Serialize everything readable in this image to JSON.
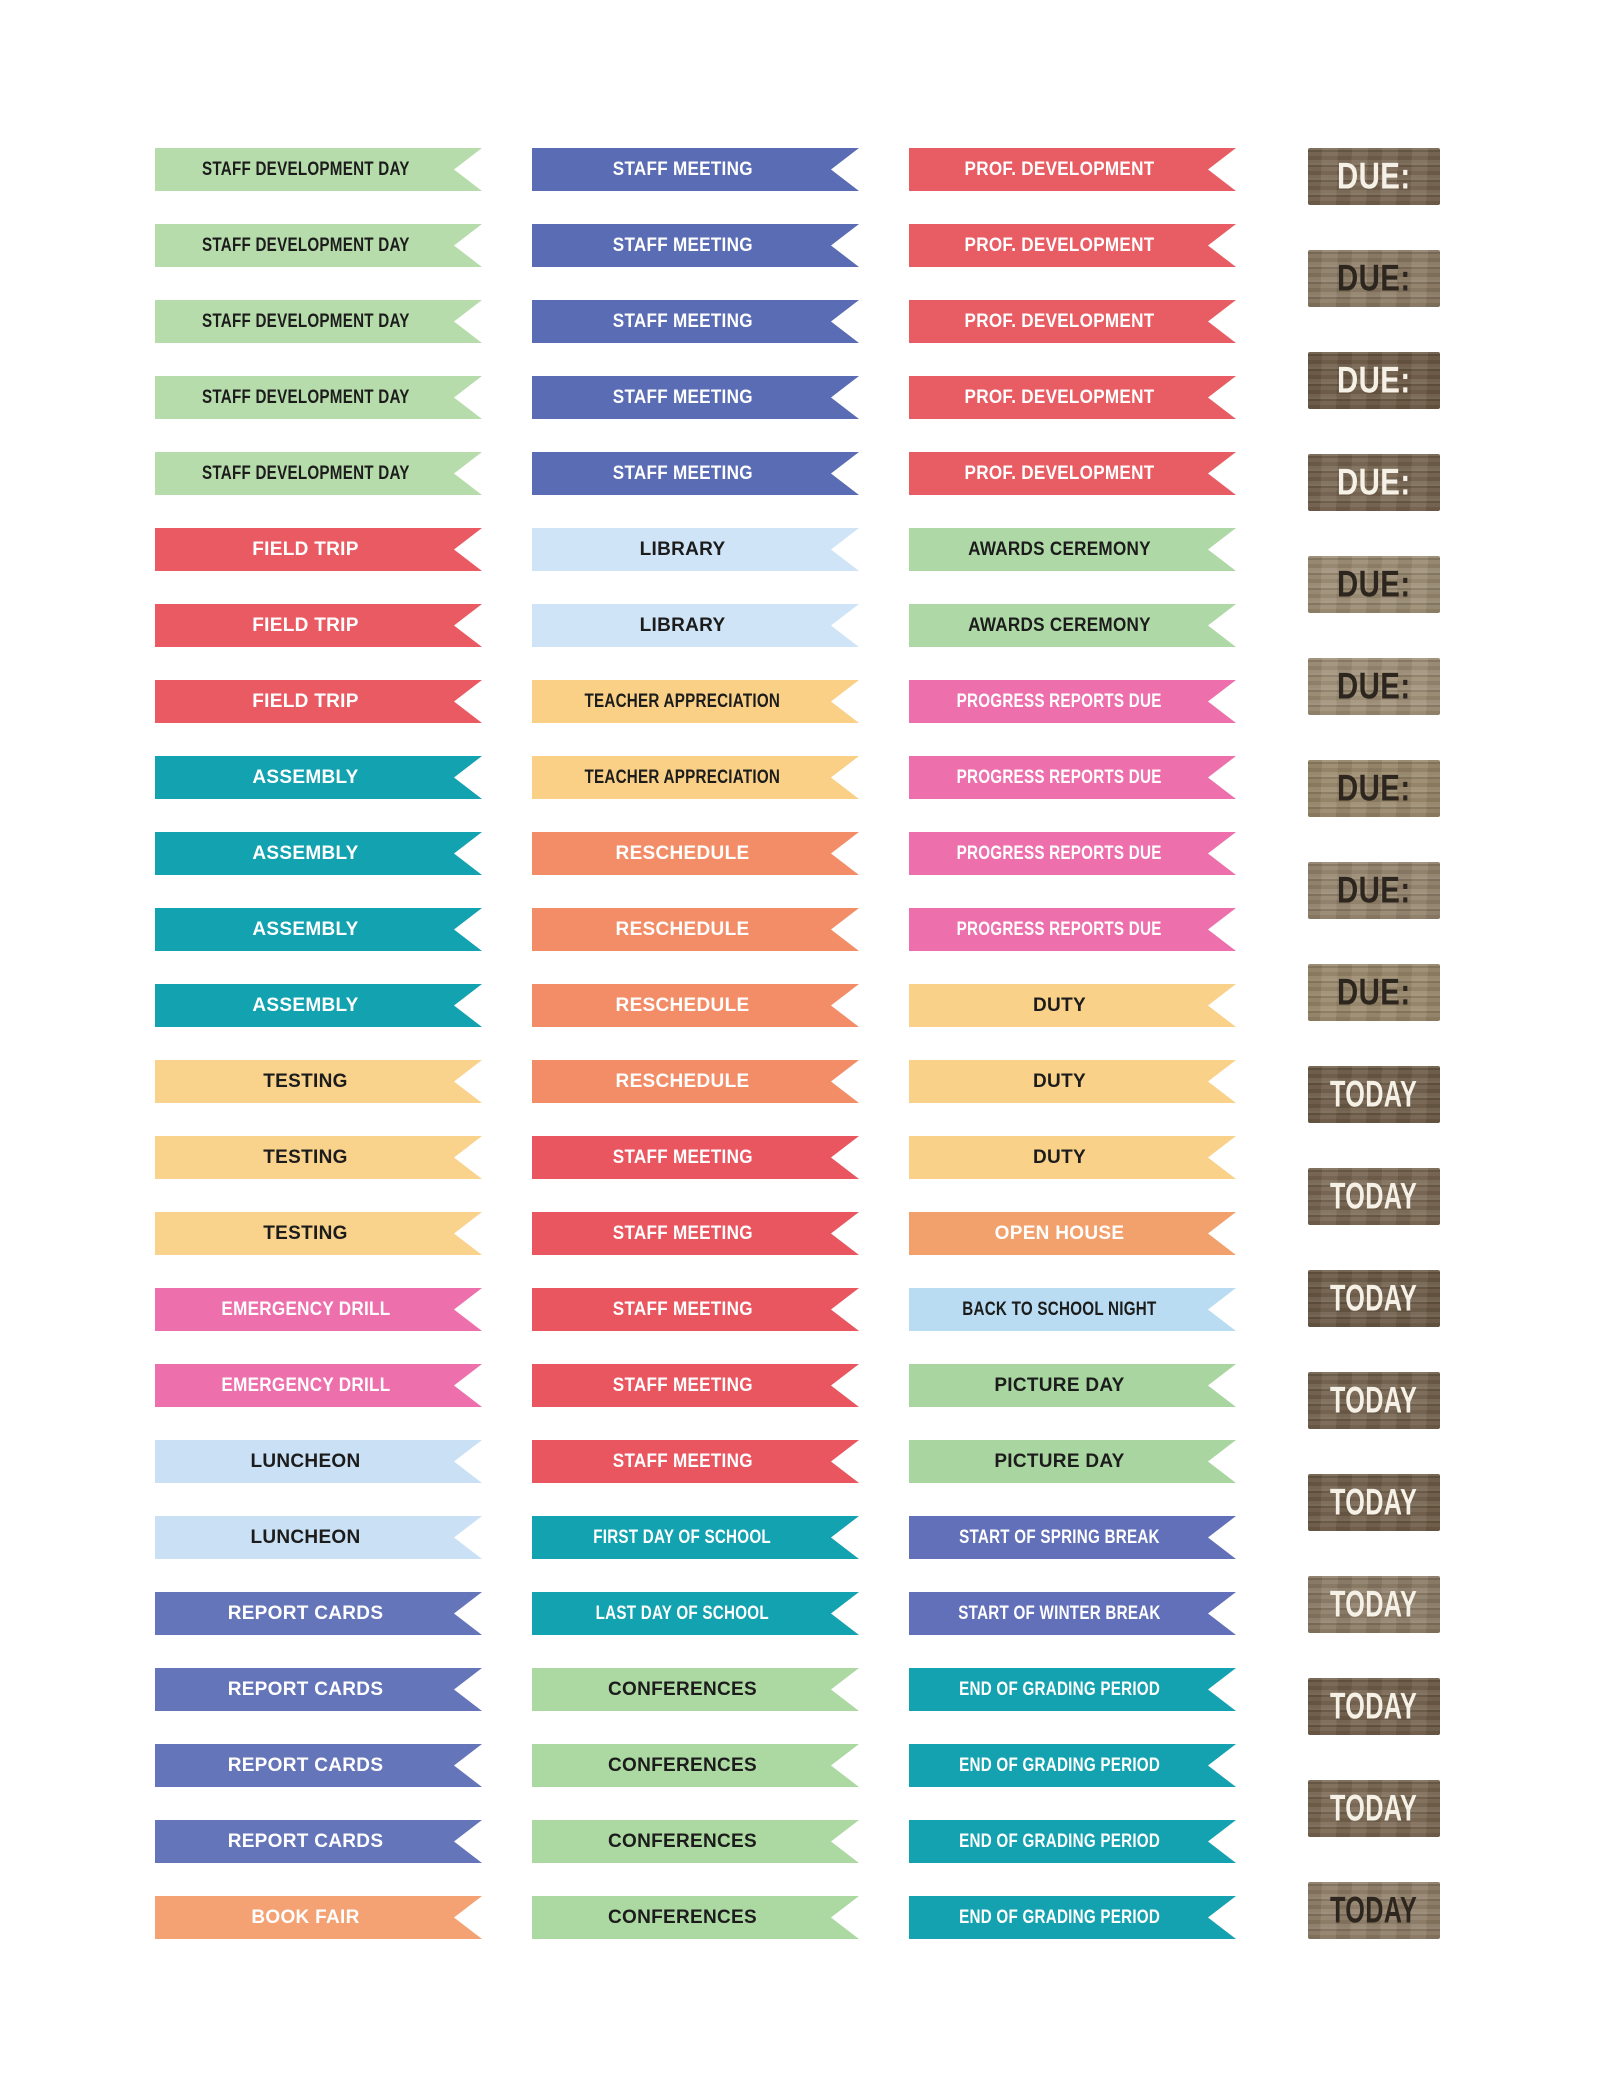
{
  "page": {
    "background": "#ffffff"
  },
  "sticker_sheet": {
    "columns": [
      {
        "flags": [
          {
            "label": "STAFF DEVELOPMENT DAY",
            "bg": "#b7dcab",
            "fg": "#1c1c1c"
          },
          {
            "label": "STAFF DEVELOPMENT DAY",
            "bg": "#b7dcab",
            "fg": "#1c1c1c"
          },
          {
            "label": "STAFF DEVELOPMENT DAY",
            "bg": "#b7dcab",
            "fg": "#1c1c1c"
          },
          {
            "label": "STAFF DEVELOPMENT DAY",
            "bg": "#b7dcab",
            "fg": "#1c1c1c"
          },
          {
            "label": "STAFF DEVELOPMENT DAY",
            "bg": "#b7dcab",
            "fg": "#1c1c1c"
          },
          {
            "label": "FIELD TRIP",
            "bg": "#ea5a62",
            "fg": "#ffffff"
          },
          {
            "label": "FIELD TRIP",
            "bg": "#ea5a62",
            "fg": "#ffffff"
          },
          {
            "label": "FIELD TRIP",
            "bg": "#ea5a62",
            "fg": "#ffffff"
          },
          {
            "label": "ASSEMBLY",
            "bg": "#12a2b0",
            "fg": "#ffffff"
          },
          {
            "label": "ASSEMBLY",
            "bg": "#12a2b0",
            "fg": "#ffffff"
          },
          {
            "label": "ASSEMBLY",
            "bg": "#12a2b0",
            "fg": "#ffffff"
          },
          {
            "label": "ASSEMBLY",
            "bg": "#12a2b0",
            "fg": "#ffffff"
          },
          {
            "label": "TESTING",
            "bg": "#f9d28c",
            "fg": "#1c1c1c"
          },
          {
            "label": "TESTING",
            "bg": "#f9d28c",
            "fg": "#1c1c1c"
          },
          {
            "label": "TESTING",
            "bg": "#f9d28c",
            "fg": "#1c1c1c"
          },
          {
            "label": "EMERGENCY DRILL",
            "bg": "#ed70ad",
            "fg": "#ffffff"
          },
          {
            "label": "EMERGENCY DRILL",
            "bg": "#ed70ad",
            "fg": "#ffffff"
          },
          {
            "label": "LUNCHEON",
            "bg": "#c9e0f5",
            "fg": "#1c1c1c"
          },
          {
            "label": "LUNCHEON",
            "bg": "#c9e0f5",
            "fg": "#1c1c1c"
          },
          {
            "label": "REPORT CARDS",
            "bg": "#6575ba",
            "fg": "#ffffff"
          },
          {
            "label": "REPORT CARDS",
            "bg": "#6575ba",
            "fg": "#ffffff"
          },
          {
            "label": "REPORT CARDS",
            "bg": "#6575ba",
            "fg": "#ffffff"
          },
          {
            "label": "REPORT CARDS",
            "bg": "#6575ba",
            "fg": "#ffffff"
          },
          {
            "label": "BOOK FAIR",
            "bg": "#f4a173",
            "fg": "#ffffff"
          }
        ]
      },
      {
        "flags": [
          {
            "label": "STAFF MEETING",
            "bg": "#5a6cb4",
            "fg": "#ffffff"
          },
          {
            "label": "STAFF MEETING",
            "bg": "#5a6cb4",
            "fg": "#ffffff"
          },
          {
            "label": "STAFF MEETING",
            "bg": "#5a6cb4",
            "fg": "#ffffff"
          },
          {
            "label": "STAFF MEETING",
            "bg": "#5a6cb4",
            "fg": "#ffffff"
          },
          {
            "label": "STAFF MEETING",
            "bg": "#5a6cb4",
            "fg": "#ffffff"
          },
          {
            "label": "LIBRARY",
            "bg": "#cfe5f7",
            "fg": "#1c1c1c"
          },
          {
            "label": "LIBRARY",
            "bg": "#cfe5f7",
            "fg": "#1c1c1c"
          },
          {
            "label": "TEACHER APPRECIATION",
            "bg": "#f9d086",
            "fg": "#1c1c1c"
          },
          {
            "label": "TEACHER APPRECIATION",
            "bg": "#f9d086",
            "fg": "#1c1c1c"
          },
          {
            "label": "RESCHEDULE",
            "bg": "#f28d67",
            "fg": "#ffffff"
          },
          {
            "label": "RESCHEDULE",
            "bg": "#f28d67",
            "fg": "#ffffff"
          },
          {
            "label": "RESCHEDULE",
            "bg": "#f28d67",
            "fg": "#ffffff"
          },
          {
            "label": "RESCHEDULE",
            "bg": "#f28d67",
            "fg": "#ffffff"
          },
          {
            "label": "STAFF MEETING",
            "bg": "#e9565f",
            "fg": "#ffffff"
          },
          {
            "label": "STAFF MEETING",
            "bg": "#e9565f",
            "fg": "#ffffff"
          },
          {
            "label": "STAFF MEETING",
            "bg": "#e9565f",
            "fg": "#ffffff"
          },
          {
            "label": "STAFF MEETING",
            "bg": "#e9565f",
            "fg": "#ffffff"
          },
          {
            "label": "STAFF MEETING",
            "bg": "#e9565f",
            "fg": "#ffffff"
          },
          {
            "label": "FIRST DAY OF SCHOOL",
            "bg": "#12a2b0",
            "fg": "#ffffff"
          },
          {
            "label": "LAST DAY OF SCHOOL",
            "bg": "#12a2b0",
            "fg": "#ffffff"
          },
          {
            "label": "CONFERENCES",
            "bg": "#acd8a2",
            "fg": "#1c1c1c"
          },
          {
            "label": "CONFERENCES",
            "bg": "#acd8a2",
            "fg": "#1c1c1c"
          },
          {
            "label": "CONFERENCES",
            "bg": "#acd8a2",
            "fg": "#1c1c1c"
          },
          {
            "label": "CONFERENCES",
            "bg": "#acd8a2",
            "fg": "#1c1c1c"
          }
        ]
      },
      {
        "flags": [
          {
            "label": "PROF. DEVELOPMENT",
            "bg": "#e85c63",
            "fg": "#ffffff"
          },
          {
            "label": "PROF. DEVELOPMENT",
            "bg": "#e85c63",
            "fg": "#ffffff"
          },
          {
            "label": "PROF. DEVELOPMENT",
            "bg": "#e85c63",
            "fg": "#ffffff"
          },
          {
            "label": "PROF. DEVELOPMENT",
            "bg": "#e85c63",
            "fg": "#ffffff"
          },
          {
            "label": "PROF. DEVELOPMENT",
            "bg": "#e85c63",
            "fg": "#ffffff"
          },
          {
            "label": "AWARDS CEREMONY",
            "bg": "#aed8a5",
            "fg": "#1c1c1c"
          },
          {
            "label": "AWARDS CEREMONY",
            "bg": "#aed8a5",
            "fg": "#1c1c1c"
          },
          {
            "label": "PROGRESS REPORTS DUE",
            "bg": "#ed70ad",
            "fg": "#ffffff"
          },
          {
            "label": "PROGRESS REPORTS DUE",
            "bg": "#ed70ad",
            "fg": "#ffffff"
          },
          {
            "label": "PROGRESS REPORTS DUE",
            "bg": "#ed70ad",
            "fg": "#ffffff"
          },
          {
            "label": "PROGRESS REPORTS DUE",
            "bg": "#ed70ad",
            "fg": "#ffffff"
          },
          {
            "label": "DUTY",
            "bg": "#f9d189",
            "fg": "#1c1c1c"
          },
          {
            "label": "DUTY",
            "bg": "#f9d189",
            "fg": "#1c1c1c"
          },
          {
            "label": "DUTY",
            "bg": "#f9d189",
            "fg": "#1c1c1c"
          },
          {
            "label": "OPEN HOUSE",
            "bg": "#f2a16d",
            "fg": "#ffffff"
          },
          {
            "label": "BACK TO SCHOOL NIGHT",
            "bg": "#b9dcf2",
            "fg": "#1c1c1c"
          },
          {
            "label": "PICTURE DAY",
            "bg": "#a9d6a0",
            "fg": "#1c1c1c"
          },
          {
            "label": "PICTURE DAY",
            "bg": "#a9d6a0",
            "fg": "#1c1c1c"
          },
          {
            "label": "START OF SPRING BREAK",
            "bg": "#6170b8",
            "fg": "#ffffff"
          },
          {
            "label": "START OF WINTER BREAK",
            "bg": "#6170b8",
            "fg": "#ffffff"
          },
          {
            "label": "END OF GRADING PERIOD",
            "bg": "#14a2b0",
            "fg": "#ffffff"
          },
          {
            "label": "END OF GRADING PERIOD",
            "bg": "#14a2b0",
            "fg": "#ffffff"
          },
          {
            "label": "END OF GRADING PERIOD",
            "bg": "#14a2b0",
            "fg": "#ffffff"
          },
          {
            "label": "END OF GRADING PERIOD",
            "bg": "#14a2b0",
            "fg": "#ffffff"
          }
        ]
      }
    ],
    "corner_stickers": [
      {
        "label": "DUE:",
        "bg": "#75634e",
        "fg": "#f6f1e7"
      },
      {
        "label": "DUE:",
        "bg": "#8a7963",
        "fg": "#2d261e"
      },
      {
        "label": "DUE:",
        "bg": "#6a5843",
        "fg": "#f6f1e7"
      },
      {
        "label": "DUE:",
        "bg": "#74624d",
        "fg": "#f6f1e7"
      },
      {
        "label": "DUE:",
        "bg": "#9a8a71",
        "fg": "#2d261e"
      },
      {
        "label": "DUE:",
        "bg": "#9d8d74",
        "fg": "#2d261e"
      },
      {
        "label": "DUE:",
        "bg": "#978668",
        "fg": "#2d261e"
      },
      {
        "label": "DUE:",
        "bg": "#94836b",
        "fg": "#2d261e"
      },
      {
        "label": "DUE:",
        "bg": "#988769",
        "fg": "#2d261e"
      },
      {
        "label": "TODAY",
        "bg": "#6d5b46",
        "fg": "#f6f1e7"
      },
      {
        "label": "TODAY",
        "bg": "#76644f",
        "fg": "#f6f1e7"
      },
      {
        "label": "TODAY",
        "bg": "#6a5844",
        "fg": "#f6f1e7"
      },
      {
        "label": "TODAY",
        "bg": "#72604b",
        "fg": "#f6f1e7"
      },
      {
        "label": "TODAY",
        "bg": "#6e5c47",
        "fg": "#f6f1e7"
      },
      {
        "label": "TODAY",
        "bg": "#8a7a64",
        "fg": "#f6f1e7"
      },
      {
        "label": "TODAY",
        "bg": "#6f5d48",
        "fg": "#f6f1e7"
      },
      {
        "label": "TODAY",
        "bg": "#77654f",
        "fg": "#f6f1e7"
      },
      {
        "label": "TODAY",
        "bg": "#8d7c66",
        "fg": "#2d261e"
      }
    ]
  }
}
